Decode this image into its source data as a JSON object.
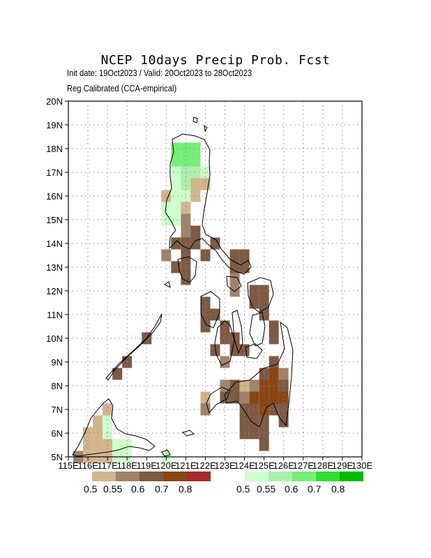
{
  "header": {
    "title": "NCEP 10days Precip Prob. Fcst",
    "subtitle1": "Init date: 19Oct2023 / Valid: 20Oct2023 to 28Oct2023",
    "subtitle2": "Reg Calibrated (CCA-empirical)"
  },
  "map": {
    "lat_labels": [
      "5N",
      "6N",
      "7N",
      "8N",
      "9N",
      "10N",
      "11N",
      "12N",
      "13N",
      "14N",
      "15N",
      "16N",
      "17N",
      "18N",
      "19N",
      "20N"
    ],
    "lon_labels": [
      "115E",
      "116E",
      "117E",
      "118E",
      "119E",
      "120E",
      "121E",
      "122E",
      "123E",
      "124E",
      "125E",
      "126E",
      "127E",
      "128E",
      "129E",
      "130E"
    ],
    "lat_range": [
      5,
      20
    ],
    "lon_range": [
      115,
      130
    ],
    "grid": "dotted",
    "cell_size_deg": 0.5
  },
  "legend_dry": {
    "labels": [
      "0.5",
      "0.55",
      "0.6",
      "0.7",
      "0.8"
    ],
    "colors": [
      "#d2b48c",
      "#a0826d",
      "#7d5a44",
      "#8b4513",
      "#a52a2a"
    ]
  },
  "legend_wet": {
    "labels": [
      "0.5",
      "0.55",
      "0.6",
      "0.7",
      "0.8"
    ],
    "colors": [
      "#ccffcc",
      "#aaf0aa",
      "#77ee77",
      "#33dd33",
      "#00bb00"
    ]
  },
  "chart_data": {
    "type": "heatmap",
    "title": "NCEP 10days Precip Prob. Fcst",
    "xlabel": "",
    "ylabel": "",
    "xlim": [
      115,
      130
    ],
    "ylim": [
      5,
      20
    ],
    "categories_dry": [
      "0.5",
      "0.55",
      "0.6",
      "0.7",
      "0.8"
    ],
    "categories_wet": [
      "0.5",
      "0.55",
      "0.6",
      "0.7",
      "0.8"
    ],
    "cells": [
      {
        "lon": 120.5,
        "lat": 18.0,
        "cat": "w3"
      },
      {
        "lon": 121.0,
        "lat": 18.0,
        "cat": "w3"
      },
      {
        "lon": 121.5,
        "lat": 18.0,
        "cat": "w3"
      },
      {
        "lon": 120.5,
        "lat": 17.5,
        "cat": "w3"
      },
      {
        "lon": 121.0,
        "lat": 17.5,
        "cat": "w3"
      },
      {
        "lon": 121.5,
        "lat": 17.5,
        "cat": "w3"
      },
      {
        "lon": 120.5,
        "lat": 17.0,
        "cat": "w1"
      },
      {
        "lon": 121.0,
        "lat": 17.0,
        "cat": "w2"
      },
      {
        "lon": 121.5,
        "lat": 17.0,
        "cat": "w2"
      },
      {
        "lon": 122.0,
        "lat": 17.0,
        "cat": "w1"
      },
      {
        "lon": 120.5,
        "lat": 16.5,
        "cat": "w1"
      },
      {
        "lon": 121.0,
        "lat": 16.5,
        "cat": "w2"
      },
      {
        "lon": 121.5,
        "lat": 16.5,
        "cat": "d1"
      },
      {
        "lon": 122.0,
        "lat": 16.5,
        "cat": "d1"
      },
      {
        "lon": 120.0,
        "lat": 16.0,
        "cat": "d1"
      },
      {
        "lon": 120.5,
        "lat": 16.0,
        "cat": "w1"
      },
      {
        "lon": 121.0,
        "lat": 16.0,
        "cat": "w1"
      },
      {
        "lon": 121.5,
        "lat": 16.0,
        "cat": "d1"
      },
      {
        "lon": 120.0,
        "lat": 15.5,
        "cat": "w1"
      },
      {
        "lon": 120.5,
        "lat": 15.5,
        "cat": "w1"
      },
      {
        "lon": 121.0,
        "lat": 15.5,
        "cat": "d1"
      },
      {
        "lon": 120.0,
        "lat": 15.0,
        "cat": "w1"
      },
      {
        "lon": 120.5,
        "lat": 15.0,
        "cat": "w1"
      },
      {
        "lon": 121.0,
        "lat": 15.0,
        "cat": "d2"
      },
      {
        "lon": 121.0,
        "lat": 14.5,
        "cat": "d2"
      },
      {
        "lon": 121.5,
        "lat": 14.5,
        "cat": "d3"
      },
      {
        "lon": 120.5,
        "lat": 14.0,
        "cat": "d3"
      },
      {
        "lon": 121.0,
        "lat": 14.0,
        "cat": "d3"
      },
      {
        "lon": 121.5,
        "lat": 14.0,
        "cat": "d3"
      },
      {
        "lon": 122.5,
        "lat": 14.0,
        "cat": "d3"
      },
      {
        "lon": 120.0,
        "lat": 13.5,
        "cat": "d2"
      },
      {
        "lon": 121.0,
        "lat": 13.5,
        "cat": "d3"
      },
      {
        "lon": 122.0,
        "lat": 13.5,
        "cat": "d3"
      },
      {
        "lon": 123.5,
        "lat": 13.5,
        "cat": "d3"
      },
      {
        "lon": 124.0,
        "lat": 13.5,
        "cat": "d3"
      },
      {
        "lon": 120.5,
        "lat": 13.0,
        "cat": "d3"
      },
      {
        "lon": 121.0,
        "lat": 13.0,
        "cat": "d3"
      },
      {
        "lon": 123.5,
        "lat": 13.0,
        "cat": "d3"
      },
      {
        "lon": 124.0,
        "lat": 13.0,
        "cat": "d3"
      },
      {
        "lon": 121.0,
        "lat": 12.5,
        "cat": "d3"
      },
      {
        "lon": 123.5,
        "lat": 12.5,
        "cat": "d2"
      },
      {
        "lon": 124.5,
        "lat": 12.0,
        "cat": "d3"
      },
      {
        "lon": 125.0,
        "lat": 12.0,
        "cat": "d3"
      },
      {
        "lon": 123.5,
        "lat": 12.0,
        "cat": "d2"
      },
      {
        "lon": 122.0,
        "lat": 11.5,
        "cat": "d3"
      },
      {
        "lon": 124.5,
        "lat": 11.5,
        "cat": "d3"
      },
      {
        "lon": 125.0,
        "lat": 11.5,
        "cat": "d3"
      },
      {
        "lon": 122.0,
        "lat": 11.0,
        "cat": "d3"
      },
      {
        "lon": 122.5,
        "lat": 11.0,
        "cat": "d3"
      },
      {
        "lon": 125.0,
        "lat": 11.0,
        "cat": "d3"
      },
      {
        "lon": 122.0,
        "lat": 10.5,
        "cat": "d3"
      },
      {
        "lon": 123.0,
        "lat": 10.5,
        "cat": "d3"
      },
      {
        "lon": 125.5,
        "lat": 10.5,
        "cat": "d3"
      },
      {
        "lon": 123.0,
        "lat": 10.0,
        "cat": "d3"
      },
      {
        "lon": 123.5,
        "lat": 10.0,
        "cat": "d3"
      },
      {
        "lon": 119.0,
        "lat": 10.0,
        "cat": "d3"
      },
      {
        "lon": 125.5,
        "lat": 10.0,
        "cat": "d3"
      },
      {
        "lon": 122.5,
        "lat": 9.5,
        "cat": "d3"
      },
      {
        "lon": 123.5,
        "lat": 9.5,
        "cat": "d3"
      },
      {
        "lon": 124.0,
        "lat": 9.5,
        "cat": "d3"
      },
      {
        "lon": 118.0,
        "lat": 9.0,
        "cat": "d3"
      },
      {
        "lon": 123.0,
        "lat": 9.0,
        "cat": "d2"
      },
      {
        "lon": 125.5,
        "lat": 9.0,
        "cat": "d3"
      },
      {
        "lon": 117.5,
        "lat": 8.5,
        "cat": "d3"
      },
      {
        "lon": 125.0,
        "lat": 8.5,
        "cat": "d3"
      },
      {
        "lon": 125.5,
        "lat": 8.5,
        "cat": "d4"
      },
      {
        "lon": 126.0,
        "lat": 8.5,
        "cat": "d2"
      },
      {
        "lon": 123.0,
        "lat": 8.0,
        "cat": "d2"
      },
      {
        "lon": 123.5,
        "lat": 8.0,
        "cat": "d3"
      },
      {
        "lon": 124.0,
        "lat": 8.0,
        "cat": "d1"
      },
      {
        "lon": 124.5,
        "lat": 8.0,
        "cat": "d2"
      },
      {
        "lon": 125.0,
        "lat": 8.0,
        "cat": "d4"
      },
      {
        "lon": 125.5,
        "lat": 8.0,
        "cat": "d4"
      },
      {
        "lon": 126.0,
        "lat": 8.0,
        "cat": "d3"
      },
      {
        "lon": 122.0,
        "lat": 7.5,
        "cat": "d1"
      },
      {
        "lon": 123.0,
        "lat": 7.5,
        "cat": "d3"
      },
      {
        "lon": 123.5,
        "lat": 7.5,
        "cat": "d3"
      },
      {
        "lon": 124.0,
        "lat": 7.5,
        "cat": "d2"
      },
      {
        "lon": 124.5,
        "lat": 7.5,
        "cat": "d4"
      },
      {
        "lon": 125.0,
        "lat": 7.5,
        "cat": "d4"
      },
      {
        "lon": 125.5,
        "lat": 7.5,
        "cat": "d4"
      },
      {
        "lon": 126.0,
        "lat": 7.5,
        "cat": "d4"
      },
      {
        "lon": 122.0,
        "lat": 7.0,
        "cat": "d2"
      },
      {
        "lon": 124.0,
        "lat": 7.0,
        "cat": "d3"
      },
      {
        "lon": 124.5,
        "lat": 7.0,
        "cat": "d3"
      },
      {
        "lon": 125.0,
        "lat": 7.0,
        "cat": "d4"
      },
      {
        "lon": 125.5,
        "lat": 7.0,
        "cat": "d3"
      },
      {
        "lon": 126.0,
        "lat": 7.0,
        "cat": "d3"
      },
      {
        "lon": 124.0,
        "lat": 6.5,
        "cat": "d3"
      },
      {
        "lon": 124.5,
        "lat": 6.5,
        "cat": "d3"
      },
      {
        "lon": 125.0,
        "lat": 6.5,
        "cat": "d3"
      },
      {
        "lon": 126.0,
        "lat": 6.5,
        "cat": "d3"
      },
      {
        "lon": 124.0,
        "lat": 6.0,
        "cat": "d3"
      },
      {
        "lon": 124.5,
        "lat": 6.0,
        "cat": "d3"
      },
      {
        "lon": 125.0,
        "lat": 6.0,
        "cat": "d3"
      },
      {
        "lon": 125.0,
        "lat": 5.5,
        "cat": "d3"
      },
      {
        "lon": 117.0,
        "lat": 7.0,
        "cat": "d1"
      },
      {
        "lon": 116.5,
        "lat": 6.5,
        "cat": "d1"
      },
      {
        "lon": 117.0,
        "lat": 6.5,
        "cat": "w1"
      },
      {
        "lon": 116.0,
        "lat": 6.0,
        "cat": "d1"
      },
      {
        "lon": 116.5,
        "lat": 6.0,
        "cat": "d1"
      },
      {
        "lon": 117.0,
        "lat": 6.0,
        "cat": "w1"
      },
      {
        "lon": 116.0,
        "lat": 5.5,
        "cat": "d1"
      },
      {
        "lon": 116.5,
        "lat": 5.5,
        "cat": "d1"
      },
      {
        "lon": 117.0,
        "lat": 5.5,
        "cat": "d1"
      },
      {
        "lon": 117.5,
        "lat": 5.5,
        "cat": "w1"
      },
      {
        "lon": 118.0,
        "lat": 5.5,
        "cat": "w1"
      },
      {
        "lon": 115.5,
        "lat": 5.0,
        "cat": "d2"
      },
      {
        "lon": 116.0,
        "lat": 5.0,
        "cat": "d1"
      },
      {
        "lon": 116.5,
        "lat": 5.0,
        "cat": "d1"
      },
      {
        "lon": 117.0,
        "lat": 5.0,
        "cat": "d1"
      },
      {
        "lon": 117.5,
        "lat": 5.0,
        "cat": "w1"
      },
      {
        "lon": 118.0,
        "lat": 5.0,
        "cat": "w1"
      },
      {
        "lon": 120.0,
        "lat": 5.0,
        "cat": "w1"
      }
    ]
  }
}
